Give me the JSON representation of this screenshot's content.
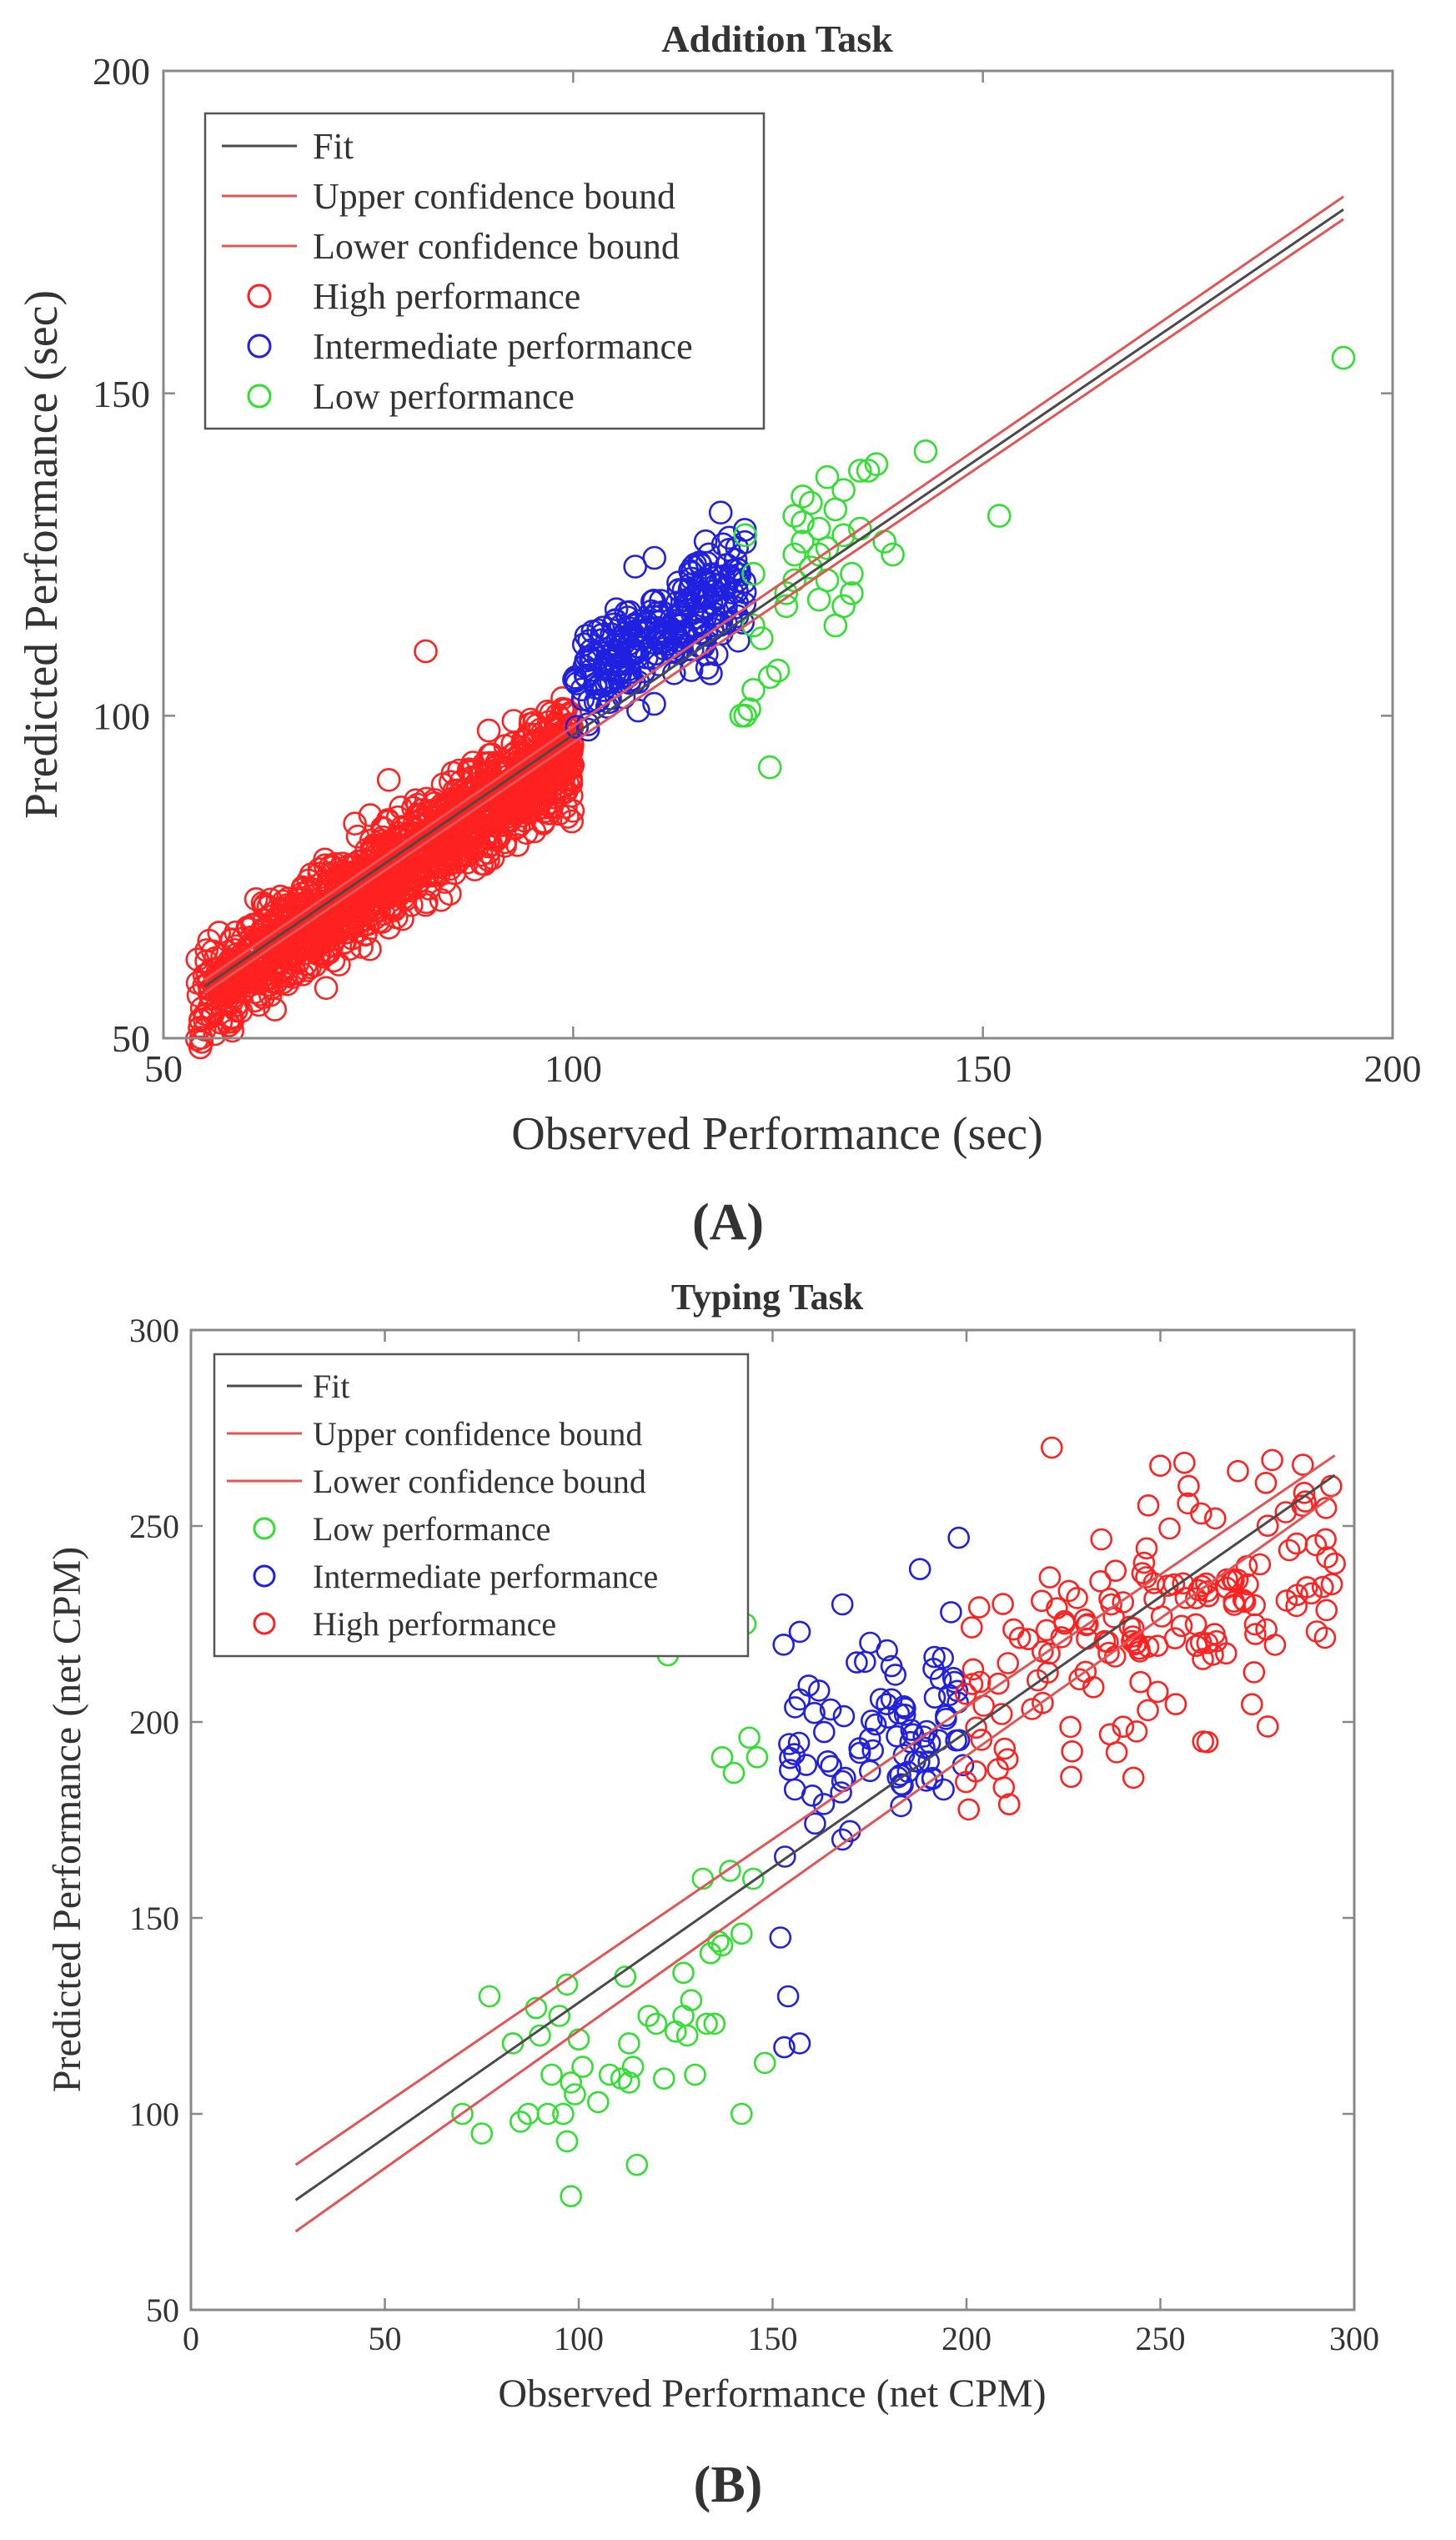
{
  "chart_data": [
    {
      "type": "scatter",
      "panel_label": "(A)",
      "title": "Addition Task",
      "xlabel": "Observed Performance (sec)",
      "ylabel": "Predicted Performance (sec)",
      "xlim": [
        50,
        200
      ],
      "ylim": [
        50,
        200
      ],
      "xticks": [
        "50",
        "100",
        "150",
        "200"
      ],
      "yticks": [
        "50",
        "100",
        "150",
        "200"
      ],
      "legend_position": "top-left",
      "lines": [
        {
          "name": "Fit",
          "color": "#4a4a4a",
          "x": [
            55,
            194
          ],
          "y": [
            58,
            178.5
          ]
        },
        {
          "name": "Upper confidence bound",
          "color": "#e05555",
          "x": [
            55,
            194
          ],
          "y": [
            59,
            180.5
          ]
        },
        {
          "name": "Lower confidence bound",
          "color": "#e05555",
          "x": [
            55,
            194
          ],
          "y": [
            57,
            177
          ]
        }
      ],
      "series": [
        {
          "name": "High performance",
          "color": "#ff2020",
          "x_range": [
            54,
            100
          ],
          "cloud": {
            "count": 1400,
            "slope": 0.85,
            "intercept": 10,
            "spread": 3.8
          },
          "extra_points": [
            [
              82,
              110
            ],
            [
              58,
              52
            ]
          ]
        },
        {
          "name": "Intermediate performance",
          "color": "#2020e0",
          "x_range": [
            100,
            121
          ],
          "cloud": {
            "count": 260,
            "slope": 0.75,
            "intercept": 30,
            "spread": 4.2
          },
          "extra_points": [
            [
              118,
              131.5
            ]
          ]
        },
        {
          "name": "Low performance",
          "color": "#30e030",
          "points": [
            [
              120.5,
              100
            ],
            [
              121,
              100
            ],
            [
              121.5,
              101
            ],
            [
              122,
              104
            ],
            [
              122,
              114
            ],
            [
              123,
              112
            ],
            [
              121,
              128
            ],
            [
              122,
              122
            ],
            [
              124,
              106
            ],
            [
              125,
              107
            ],
            [
              124,
              92
            ],
            [
              126,
              117
            ],
            [
              126,
              119
            ],
            [
              127,
              121
            ],
            [
              127,
              125
            ],
            [
              127,
              131
            ],
            [
              128,
              130
            ],
            [
              128,
              134
            ],
            [
              128,
              127
            ],
            [
              129,
              123
            ],
            [
              129,
              133
            ],
            [
              130,
              125
            ],
            [
              130,
              129
            ],
            [
              130,
              118
            ],
            [
              131,
              121
            ],
            [
              131,
              126
            ],
            [
              131,
              137
            ],
            [
              132,
              132
            ],
            [
              132,
              114
            ],
            [
              133,
              128
            ],
            [
              133,
              135
            ],
            [
              133,
              117
            ],
            [
              134,
              122
            ],
            [
              134,
              119
            ],
            [
              135,
              129
            ],
            [
              135,
              138
            ],
            [
              136,
              138
            ],
            [
              137,
              139
            ],
            [
              138,
              127
            ],
            [
              139,
              125
            ],
            [
              143,
              141
            ],
            [
              152,
              131
            ],
            [
              194,
              155.5
            ]
          ]
        }
      ]
    },
    {
      "type": "scatter",
      "panel_label": "(B)",
      "title": "Typing Task",
      "xlabel": "Observed Performance (net CPM)",
      "ylabel": "Predicted Performance (net CPM)",
      "xlim": [
        0,
        300
      ],
      "ylim": [
        50,
        300
      ],
      "xticks": [
        "0",
        "50",
        "100",
        "150",
        "200",
        "250",
        "300"
      ],
      "yticks": [
        "50",
        "100",
        "150",
        "200",
        "250",
        "300"
      ],
      "legend_position": "top-left",
      "lines": [
        {
          "name": "Fit",
          "color": "#4a4a4a",
          "x": [
            27,
            295
          ],
          "y": [
            78,
            263
          ]
        },
        {
          "name": "Upper confidence bound",
          "color": "#e05555",
          "x": [
            27,
            295
          ],
          "y": [
            87,
            268
          ]
        },
        {
          "name": "Lower confidence bound",
          "color": "#e05555",
          "x": [
            27,
            295
          ],
          "y": [
            70,
            258
          ]
        }
      ],
      "series": [
        {
          "name": "Low performance",
          "color": "#30e030",
          "points": [
            [
              70,
              100
            ],
            [
              75,
              95
            ],
            [
              77,
              130
            ],
            [
              83,
              118
            ],
            [
              85,
              98
            ],
            [
              87,
              100
            ],
            [
              89,
              127
            ],
            [
              90,
              120
            ],
            [
              92,
              100
            ],
            [
              93,
              110
            ],
            [
              95,
              125
            ],
            [
              96,
              100
            ],
            [
              97,
              133
            ],
            [
              97,
              93
            ],
            [
              98,
              108
            ],
            [
              98,
              79
            ],
            [
              99,
              105
            ],
            [
              100,
              119
            ],
            [
              101,
              112
            ],
            [
              105,
              103
            ],
            [
              108,
              110
            ],
            [
              111,
              109
            ],
            [
              112,
              135
            ],
            [
              113,
              118
            ],
            [
              113,
              108
            ],
            [
              114,
              112
            ],
            [
              115,
              87
            ],
            [
              118,
              125
            ],
            [
              120,
              123
            ],
            [
              122,
              109
            ],
            [
              123,
              217
            ],
            [
              125,
              121
            ],
            [
              127,
              125
            ],
            [
              127,
              136
            ],
            [
              128,
              120
            ],
            [
              129,
              129
            ],
            [
              130,
              110
            ],
            [
              132,
              160
            ],
            [
              133,
              123
            ],
            [
              134,
              141
            ],
            [
              135,
              123
            ],
            [
              136,
              144
            ],
            [
              137,
              191
            ],
            [
              137,
              143
            ],
            [
              139,
              162
            ],
            [
              140,
              187
            ],
            [
              142,
              146
            ],
            [
              142,
              100
            ],
            [
              143,
              225
            ],
            [
              144,
              196
            ],
            [
              145,
              160
            ],
            [
              146,
              191
            ],
            [
              148,
              113
            ]
          ]
        },
        {
          "name": "Intermediate performance",
          "color": "#2020e0",
          "x_range": [
            152,
            200
          ],
          "cloud": {
            "count": 85,
            "slope": 0.3,
            "intercept": 142,
            "spread": 11
          },
          "extra_points": [
            [
              152,
              145
            ],
            [
              153,
              117
            ],
            [
              154,
              130
            ],
            [
              157,
              118
            ],
            [
              157,
              223
            ],
            [
              168,
              230
            ],
            [
              168,
              170
            ],
            [
              188,
              239
            ],
            [
              198,
              247
            ],
            [
              196,
              228
            ]
          ]
        },
        {
          "name": "High performance",
          "color": "#ff2020",
          "x_range": [
            198,
            295
          ],
          "cloud": {
            "count": 160,
            "slope": 0.45,
            "intercept": 112,
            "spread": 17
          },
          "extra_points": [
            [
              222,
              270
            ],
            [
              270,
              264
            ],
            [
              261,
              195
            ],
            [
              293,
              242
            ],
            [
              211,
              179
            ],
            [
              227,
              186
            ]
          ]
        }
      ]
    }
  ]
}
